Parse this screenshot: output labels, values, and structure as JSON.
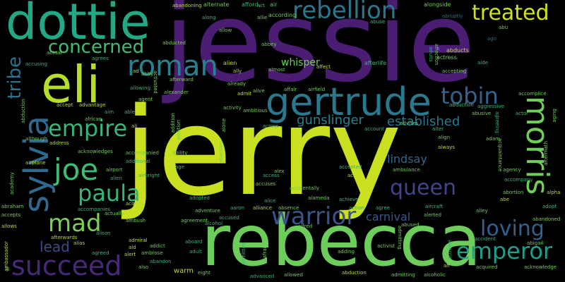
{
  "words": {
    "jessie": {
      "text": "jessie",
      "color": "#4a1d72"
    },
    "jerry": {
      "text": "jerry",
      "color": "#c8e020"
    },
    "rebecca": {
      "text": "rebecca",
      "color": "#6ccd5a"
    },
    "dottie": {
      "text": "dottie",
      "color": "#22a884"
    },
    "eli": {
      "text": "eli",
      "color": "#b5de2b"
    },
    "gertrude": {
      "text": "gertrude",
      "color": "#2a788e"
    },
    "rebellion": {
      "text": "rebellion",
      "color": "#2a788e"
    },
    "treated": {
      "text": "treated",
      "color": "#d0e11c"
    },
    "roman": {
      "text": "roman",
      "color": "#26828e"
    },
    "concerned": {
      "text": "concerned",
      "color": "#3fbc73"
    },
    "tribe": {
      "text": "tribe",
      "color": "#2c728e"
    },
    "tobin": {
      "text": "tobin",
      "color": "#33638d"
    },
    "morris": {
      "text": "morris",
      "color": "#6ece58"
    },
    "empire": {
      "text": "empire",
      "color": "#35b779"
    },
    "sylvia": {
      "text": "sylvia",
      "color": "#31688e"
    },
    "joe": {
      "text": "joe",
      "color": "#3fbc73"
    },
    "paula": {
      "text": "paula",
      "color": "#35b779"
    },
    "queen": {
      "text": "queen",
      "color": "#414487"
    },
    "warrior": {
      "text": "warrior",
      "color": "#3b528b"
    },
    "mad": {
      "text": "mad",
      "color": "#7ad151"
    },
    "loving": {
      "text": "loving",
      "color": "#355f8d"
    },
    "emperor": {
      "text": "emperor",
      "color": "#1f9e89"
    },
    "succeed": {
      "text": "succeed",
      "color": "#482878"
    },
    "lead": {
      "text": "lead",
      "color": "#3e4989"
    },
    "gunslinger": {
      "text": "gunslinger",
      "color": "#26828e"
    },
    "established": {
      "text": "established",
      "color": "#2a788e"
    },
    "whisper": {
      "text": "whisper",
      "color": "#6ece58"
    },
    "lindsay": {
      "text": "lindsay",
      "color": "#31688e"
    },
    "carnival": {
      "text": "carnival",
      "color": "#39568c"
    }
  },
  "small_words": [
    {
      "text": "alternate",
      "color": "#6ece58"
    },
    {
      "text": "afford",
      "color": "#35b779"
    },
    {
      "text": "air",
      "color": "#5ec962"
    },
    {
      "text": "abandoning",
      "color": "#b5de2b"
    },
    {
      "text": "act",
      "color": "#5ec962"
    },
    {
      "text": "alongside",
      "color": "#6ece58"
    },
    {
      "text": "abu",
      "color": "#7ad151"
    },
    {
      "text": "according",
      "color": "#6ece58"
    },
    {
      "text": "abruptly",
      "color": "#2c728e"
    },
    {
      "text": "allie",
      "color": "#7ad151"
    },
    {
      "text": "along",
      "color": "#35b779"
    },
    {
      "text": "abuse",
      "color": "#3fbc73"
    },
    {
      "text": "allow",
      "color": "#7ad151"
    },
    {
      "text": "ago",
      "color": "#2c728e"
    },
    {
      "text": "abbey",
      "color": "#6ece58"
    },
    {
      "text": "abducts",
      "color": "#b5de2b"
    },
    {
      "text": "actress",
      "color": "#6ece58"
    },
    {
      "text": "abducted",
      "color": "#7ad151"
    },
    {
      "text": "actual",
      "color": "#7ad151"
    },
    {
      "text": "afterlife",
      "color": "#35b779"
    },
    {
      "text": "accusing",
      "color": "#35b779"
    },
    {
      "text": "agrees",
      "color": "#35b779"
    },
    {
      "text": "alien",
      "color": "#b5de2b"
    },
    {
      "text": "aide",
      "color": "#35b779"
    },
    {
      "text": "ally",
      "color": "#b5de2b"
    },
    {
      "text": "almost",
      "color": "#6ece58"
    },
    {
      "text": "affect",
      "color": "#b5de2b"
    },
    {
      "text": "accepting",
      "color": "#6ece58"
    },
    {
      "text": "already",
      "color": "#7ad151"
    },
    {
      "text": "abduction",
      "color": "#3fbc73"
    },
    {
      "text": "affair",
      "color": "#7ad151"
    },
    {
      "text": "airfield",
      "color": "#6ece58"
    },
    {
      "text": "alive",
      "color": "#7ad151"
    },
    {
      "text": "admit",
      "color": "#b5de2b"
    },
    {
      "text": "alexander",
      "color": "#6ece58"
    },
    {
      "text": "abby",
      "color": "#7ad151"
    },
    {
      "text": "allowing",
      "color": "#35b779"
    },
    {
      "text": "accomplice",
      "color": "#6ece58"
    },
    {
      "text": "actor",
      "color": "#3fbc73"
    },
    {
      "text": "aggressive",
      "color": "#35b779"
    },
    {
      "text": "abusive",
      "color": "#7ad151"
    },
    {
      "text": "activity",
      "color": "#6ece58"
    },
    {
      "text": "accept",
      "color": "#b5de2b"
    },
    {
      "text": "advantage",
      "color": "#b5de2b"
    },
    {
      "text": "aim",
      "color": "#35b779"
    },
    {
      "text": "able",
      "color": "#35b779"
    },
    {
      "text": "ali",
      "color": "#b5de2b"
    },
    {
      "text": "ambitious",
      "color": "#7ad151"
    },
    {
      "text": "account",
      "color": "#35b779"
    },
    {
      "text": "advises",
      "color": "#6ece58"
    },
    {
      "text": "alter",
      "color": "#3fbc73"
    },
    {
      "text": "across",
      "color": "#35b779"
    },
    {
      "text": "african",
      "color": "#6ece58"
    },
    {
      "text": "although",
      "color": "#6ece58"
    },
    {
      "text": "address",
      "color": "#b5de2b"
    },
    {
      "text": "acknowledges",
      "color": "#6ece58"
    },
    {
      "text": "accompanied",
      "color": "#6ece58"
    },
    {
      "text": "additional",
      "color": "#35b779"
    },
    {
      "text": "ability",
      "color": "#6ece58"
    },
    {
      "text": "age",
      "color": "#35b779"
    },
    {
      "text": "access",
      "color": "#35b779"
    },
    {
      "text": "alex",
      "color": "#6ece58"
    },
    {
      "text": "accepted",
      "color": "#35b779"
    },
    {
      "text": "align",
      "color": "#6ece58"
    },
    {
      "text": "always",
      "color": "#b5de2b"
    },
    {
      "text": "adam",
      "color": "#6ece58"
    },
    {
      "text": "agency",
      "color": "#6ece58"
    },
    {
      "text": "airplane",
      "color": "#b5de2b"
    },
    {
      "text": "airport",
      "color": "#6ece58"
    },
    {
      "text": "ambulance",
      "color": "#6ece58"
    },
    {
      "text": "accompany",
      "color": "#35b779"
    },
    {
      "text": "acid",
      "color": "#b5de2b"
    },
    {
      "text": "accuses",
      "color": "#7ad151"
    },
    {
      "text": "abortion",
      "color": "#6ece58"
    },
    {
      "text": "abe",
      "color": "#b5de2b"
    },
    {
      "text": "alpha",
      "color": "#b5de2b"
    },
    {
      "text": "accidentally",
      "color": "#6ece58"
    },
    {
      "text": "alameda",
      "color": "#6ece58"
    },
    {
      "text": "alien",
      "color": "#35b779"
    },
    {
      "text": "acquire",
      "color": "#b5de2b"
    },
    {
      "text": "adopted",
      "color": "#35b779"
    },
    {
      "text": "alice",
      "color": "#35b779"
    },
    {
      "text": "achieve",
      "color": "#35b779"
    },
    {
      "text": "abraham",
      "color": "#6ece58"
    },
    {
      "text": "accompanies",
      "color": "#35b779"
    },
    {
      "text": "adventure",
      "color": "#6ece58"
    },
    {
      "text": "aaron",
      "color": "#35b779"
    },
    {
      "text": "alliance",
      "color": "#b5de2b"
    },
    {
      "text": "absence",
      "color": "#6ece58"
    },
    {
      "text": "action",
      "color": "#35b779"
    },
    {
      "text": "agree",
      "color": "#35b779"
    },
    {
      "text": "aircraft",
      "color": "#3fbc73"
    },
    {
      "text": "alley",
      "color": "#6ece58"
    },
    {
      "text": "adopt",
      "color": "#35b779"
    },
    {
      "text": "accepts",
      "color": "#7ad151"
    },
    {
      "text": "actually",
      "color": "#6ece58"
    },
    {
      "text": "agreement",
      "color": "#6ece58"
    },
    {
      "text": "accused",
      "color": "#35b779"
    },
    {
      "text": "alfred",
      "color": "#6ece58"
    },
    {
      "text": "abused",
      "color": "#6ece58"
    },
    {
      "text": "alerted",
      "color": "#6ece58"
    },
    {
      "text": "abandoned",
      "color": "#7ad151"
    },
    {
      "text": "allows",
      "color": "#b5de2b"
    },
    {
      "text": "ambush",
      "color": "#6ece58"
    },
    {
      "text": "alison",
      "color": "#35b779"
    },
    {
      "text": "alcohol",
      "color": "#35b779"
    },
    {
      "text": "afterwards",
      "color": "#b5de2b"
    },
    {
      "text": "alias",
      "color": "#b5de2b"
    },
    {
      "text": "aboard",
      "color": "#35b779"
    },
    {
      "text": "ahead",
      "color": "#6ece58"
    },
    {
      "text": "activist",
      "color": "#6ece58"
    },
    {
      "text": "accident",
      "color": "#35b779"
    },
    {
      "text": "abigail",
      "color": "#6ece58"
    },
    {
      "text": "agreed",
      "color": "#35b779"
    },
    {
      "text": "aid",
      "color": "#b5de2b"
    },
    {
      "text": "addict",
      "color": "#6ece58"
    },
    {
      "text": "alert",
      "color": "#b5de2b"
    },
    {
      "text": "ambrose",
      "color": "#6ece58"
    },
    {
      "text": "adult",
      "color": "#35b779"
    },
    {
      "text": "adding",
      "color": "#6ece58"
    },
    {
      "text": "abandon",
      "color": "#35b779"
    },
    {
      "text": "ah",
      "color": "#b5de2b"
    },
    {
      "text": "acquired",
      "color": "#6ece58"
    },
    {
      "text": "acknowledge",
      "color": "#6ece58"
    },
    {
      "text": "also",
      "color": "#7ad151"
    },
    {
      "text": "eight",
      "color": "#6ece58"
    },
    {
      "text": "advanced",
      "color": "#35b779"
    },
    {
      "text": "allowed",
      "color": "#6ece58"
    },
    {
      "text": "admitting",
      "color": "#6ece58"
    },
    {
      "text": "alcoholic",
      "color": "#6ece58"
    },
    {
      "text": "abduction",
      "color": "#b5de2b"
    },
    {
      "text": "activated",
      "color": "#7ad151"
    },
    {
      "text": "admiral",
      "color": "#b5de2b"
    },
    {
      "text": "ambassador",
      "color": "#b5de2b"
    },
    {
      "text": "academy",
      "color": "#6ece58"
    },
    {
      "text": "admitted",
      "color": "#35b779"
    },
    {
      "text": "afraid",
      "color": "#7ad151"
    },
    {
      "text": "alone",
      "color": "#6ece58"
    },
    {
      "text": "addition",
      "color": "#6ece58"
    },
    {
      "text": "airbright",
      "color": "#35b779"
    },
    {
      "text": "ad",
      "color": "#b5de2b"
    },
    {
      "text": "agent",
      "color": "#6ece58"
    },
    {
      "text": "afterward",
      "color": "#7ad151"
    },
    {
      "text": "affection",
      "color": "#6ece58"
    },
    {
      "text": "acquaintance",
      "color": "#7ad151"
    },
    {
      "text": "aging",
      "color": "#6ece58"
    },
    {
      "text": "aftermath",
      "color": "#7ad151"
    },
    {
      "text": "admitting",
      "color": "#6ece58"
    },
    {
      "text": "adults",
      "color": "#35b779"
    },
    {
      "text": "ai",
      "color": "#6ece58"
    },
    {
      "text": "abduction",
      "color": "#6ece58"
    },
    {
      "text": "abandon",
      "color": "#7ad151"
    },
    {
      "text": "agreeing",
      "color": "#35b779"
    },
    {
      "text": "activate",
      "color": "#35b779"
    },
    {
      "text": "warm",
      "color": "#b5de2b"
    },
    {
      "text": "addition",
      "color": "#6ece58"
    }
  ]
}
